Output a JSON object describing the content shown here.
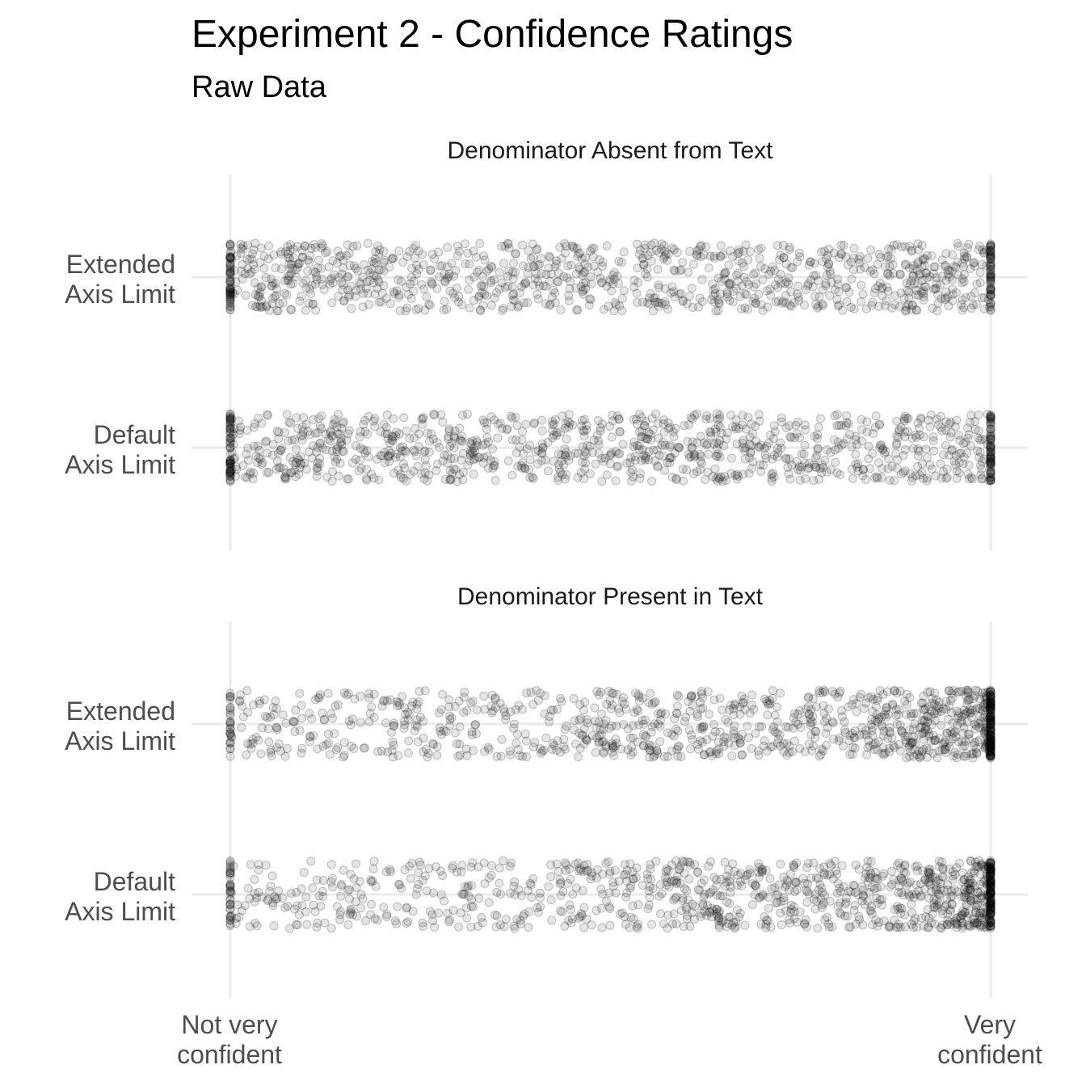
{
  "chart_data": {
    "type": "scatter",
    "title": "Experiment 2 - Confidence Ratings",
    "subtitle": "Raw Data",
    "x_tick_labels": [
      [
        "Not very",
        "confident"
      ],
      [
        "Very",
        "confident"
      ]
    ],
    "xlim": [
      0,
      100
    ],
    "grid": true,
    "panels": [
      {
        "strip_label": "Denominator Absent from Text",
        "y_categories": [
          {
            "label": [
              "Extended",
              "Axis Limit"
            ],
            "dist": "uniform",
            "count": 1100
          },
          {
            "label": [
              "Default",
              "Axis Limit"
            ],
            "dist": "uniform",
            "count": 1100
          }
        ]
      },
      {
        "strip_label": "Denominator Present in Text",
        "y_categories": [
          {
            "label": [
              "Extended",
              "Axis Limit"
            ],
            "dist": "skewed_high",
            "count": 1100
          },
          {
            "label": [
              "Default",
              "Axis Limit"
            ],
            "dist": "skewed_high",
            "count": 1100
          }
        ]
      }
    ]
  }
}
